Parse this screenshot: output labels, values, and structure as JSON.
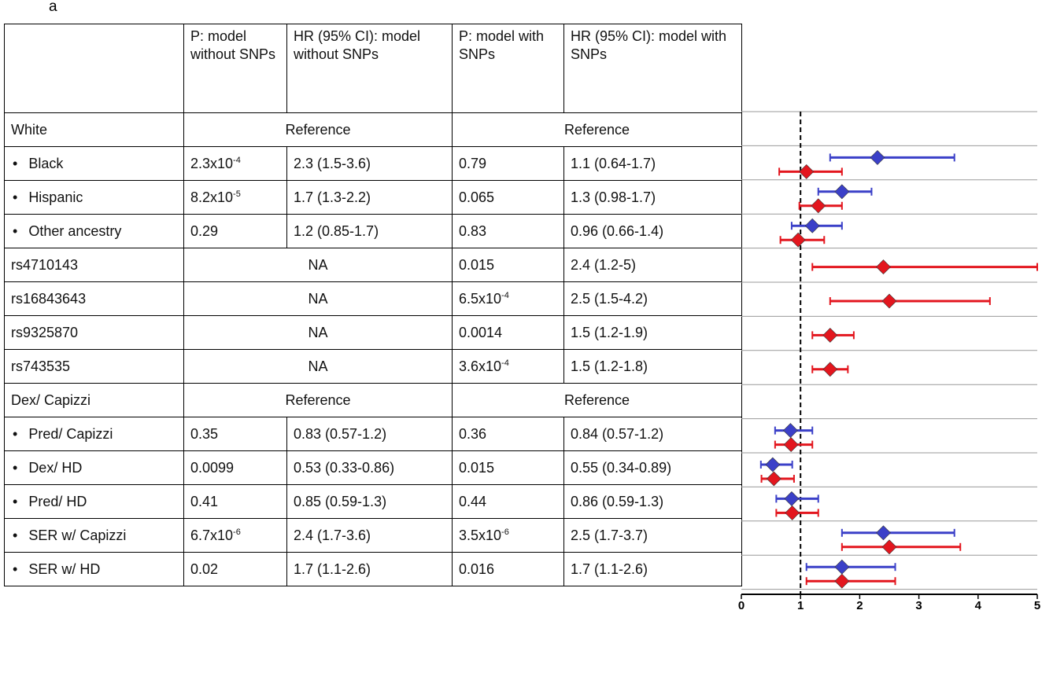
{
  "panel_label": "a",
  "table": {
    "header": [
      "P: model without SNPs",
      "HR (95% CI): model without SNPs",
      "P: model with SNPs",
      "HR (95% CI): model with SNPs"
    ],
    "rows": [
      {
        "label": "White",
        "cells": [
          "Reference",
          "Reference"
        ]
      },
      {
        "label": "Black",
        "sub": true,
        "cells": [
          {
            "text": "2.3x10",
            "sup": "-4"
          },
          "2.3 (1.5-3.6)",
          "0.79",
          "1.1 (0.64-1.7)"
        ]
      },
      {
        "label": "Hispanic",
        "sub": true,
        "cells": [
          {
            "text": "8.2x10",
            "sup": "-5"
          },
          "1.7 (1.3-2.2)",
          "0.065",
          "1.3 (0.98-1.7)"
        ]
      },
      {
        "label": "Other ancestry",
        "sub": true,
        "cells": [
          "0.29",
          "1.2 (0.85-1.7)",
          "0.83",
          "0.96 (0.66-1.4)"
        ]
      },
      {
        "label": "rs4710143",
        "cells": [
          "NA",
          "0.015",
          "2.4 (1.2-5)"
        ]
      },
      {
        "label": "rs16843643",
        "cells": [
          "NA",
          {
            "text": "6.5x10",
            "sup": "-4"
          },
          "2.5 (1.5-4.2)"
        ]
      },
      {
        "label": "rs9325870",
        "cells": [
          "NA",
          "0.0014",
          "1.5 (1.2-1.9)"
        ]
      },
      {
        "label": "rs743535",
        "cells": [
          "NA",
          {
            "text": "3.6x10",
            "sup": "-4"
          },
          "1.5 (1.2-1.8)"
        ]
      },
      {
        "label": "Dex/ Capizzi",
        "cells": [
          "Reference",
          "Reference"
        ]
      },
      {
        "label": "Pred/ Capizzi",
        "sub": true,
        "cells": [
          "0.35",
          "0.83 (0.57-1.2)",
          "0.36",
          "0.84 (0.57-1.2)"
        ]
      },
      {
        "label": "Dex/ HD",
        "sub": true,
        "cells": [
          "0.0099",
          "0.53 (0.33-0.86)",
          "0.015",
          "0.55 (0.34-0.89)"
        ]
      },
      {
        "label": "Pred/ HD",
        "sub": true,
        "cells": [
          "0.41",
          "0.85 (0.59-1.3)",
          "0.44",
          "0.86 (0.59-1.3)"
        ]
      },
      {
        "label": "SER w/ Capizzi",
        "sub": true,
        "cells": [
          {
            "text": "6.7x10",
            "sup": "-6"
          },
          "2.4 (1.7-3.6)",
          {
            "text": "3.5x10",
            "sup": "-6"
          },
          "2.5 (1.7-3.7)"
        ]
      },
      {
        "label": "SER w/ HD",
        "sub": true,
        "cells": [
          "0.02",
          "1.7 (1.1-2.6)",
          "0.016",
          "1.7 (1.1-2.6)"
        ]
      }
    ]
  },
  "chart_data": {
    "type": "forest",
    "xlim": [
      0,
      5
    ],
    "xticks": [
      0,
      1,
      2,
      3,
      4,
      5
    ],
    "reference_line": 1,
    "series": [
      {
        "color": "#3b40c8",
        "values": [
          null,
          2.3,
          1.7,
          1.2,
          null,
          null,
          null,
          null,
          null,
          0.83,
          0.53,
          0.85,
          2.4,
          1.7
        ],
        "lower": [
          null,
          1.5,
          1.3,
          0.85,
          null,
          null,
          null,
          null,
          null,
          0.57,
          0.33,
          0.59,
          1.7,
          1.1
        ],
        "upper": [
          null,
          3.6,
          2.2,
          1.7,
          null,
          null,
          null,
          null,
          null,
          1.2,
          0.86,
          1.3,
          3.6,
          2.6
        ]
      },
      {
        "color": "#e3161e",
        "values": [
          null,
          1.1,
          1.3,
          0.96,
          2.4,
          2.5,
          1.5,
          1.5,
          null,
          0.84,
          0.55,
          0.86,
          2.5,
          1.7
        ],
        "lower": [
          null,
          0.64,
          0.98,
          0.66,
          1.2,
          1.5,
          1.2,
          1.2,
          null,
          0.57,
          0.34,
          0.59,
          1.7,
          1.1
        ],
        "upper": [
          null,
          1.7,
          1.7,
          1.4,
          5,
          4.2,
          1.9,
          1.8,
          null,
          1.2,
          0.89,
          1.3,
          3.7,
          2.6
        ]
      }
    ]
  }
}
